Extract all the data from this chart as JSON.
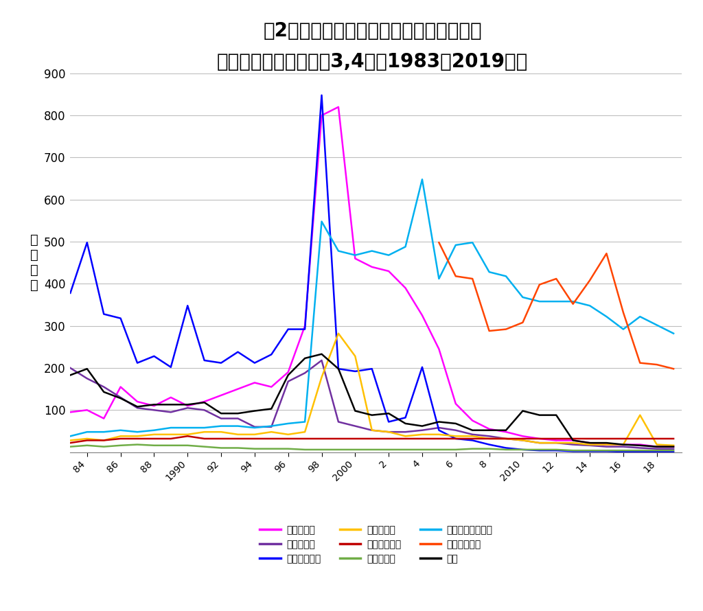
{
  "title_line1": "図2．国内における微生物による食中毒の",
  "title_line2": "発生件数の年次推移（3,4期：1983－2019年）",
  "ylabel": "発\n生\n件\n数",
  "years": [
    1983,
    1984,
    1985,
    1986,
    1987,
    1988,
    1989,
    1990,
    1991,
    1992,
    1993,
    1994,
    1995,
    1996,
    1997,
    1998,
    1999,
    2000,
    2001,
    2002,
    2003,
    2004,
    2005,
    2006,
    2007,
    2008,
    2009,
    2010,
    2011,
    2012,
    2013,
    2014,
    2015,
    2016,
    2017,
    2018,
    2019
  ],
  "series": [
    {
      "name": "サルモネラ",
      "color": "#FF00FF",
      "values": [
        95,
        100,
        80,
        155,
        120,
        110,
        130,
        110,
        120,
        135,
        150,
        165,
        155,
        190,
        300,
        800,
        820,
        460,
        440,
        430,
        390,
        325,
        245,
        115,
        75,
        55,
        48,
        38,
        32,
        28,
        28,
        22,
        18,
        18,
        18,
        13,
        13
      ]
    },
    {
      "name": "ブドウ球菌",
      "color": "#7030A0",
      "values": [
        200,
        175,
        155,
        130,
        105,
        100,
        95,
        105,
        100,
        80,
        80,
        60,
        60,
        168,
        188,
        218,
        72,
        62,
        52,
        48,
        48,
        52,
        58,
        52,
        42,
        38,
        32,
        28,
        22,
        22,
        18,
        16,
        13,
        13,
        10,
        8,
        8
      ]
    },
    {
      "name": "腸炎ビブリオ",
      "color": "#0000FF",
      "values": [
        378,
        498,
        328,
        318,
        212,
        228,
        202,
        348,
        218,
        212,
        238,
        212,
        232,
        292,
        292,
        848,
        198,
        192,
        198,
        72,
        82,
        202,
        52,
        32,
        28,
        18,
        10,
        6,
        4,
        4,
        2,
        2,
        2,
        1,
        1,
        1,
        1
      ]
    },
    {
      "name": "病原大腸菌",
      "color": "#FFC000",
      "values": [
        28,
        32,
        28,
        38,
        38,
        42,
        42,
        42,
        48,
        48,
        42,
        42,
        48,
        42,
        48,
        178,
        282,
        228,
        52,
        48,
        38,
        42,
        42,
        38,
        38,
        32,
        32,
        28,
        22,
        22,
        22,
        18,
        18,
        18,
        88,
        18,
        16
      ]
    },
    {
      "name": "ウエルシュ菌",
      "color": "#C00000",
      "values": [
        22,
        28,
        28,
        32,
        32,
        32,
        32,
        38,
        32,
        32,
        32,
        32,
        32,
        32,
        32,
        32,
        32,
        32,
        32,
        32,
        32,
        32,
        32,
        32,
        32,
        32,
        32,
        32,
        32,
        32,
        32,
        32,
        32,
        32,
        32,
        32,
        32
      ]
    },
    {
      "name": "セレウス菌",
      "color": "#70AD47",
      "values": [
        13,
        16,
        13,
        16,
        18,
        16,
        16,
        16,
        13,
        10,
        10,
        8,
        8,
        8,
        6,
        6,
        6,
        6,
        6,
        6,
        6,
        6,
        6,
        6,
        8,
        8,
        6,
        6,
        6,
        6,
        4,
        4,
        4,
        4,
        4,
        4,
        4
      ]
    },
    {
      "name": "カンピロバクター",
      "color": "#00B0F0",
      "values": [
        38,
        48,
        48,
        52,
        48,
        52,
        58,
        58,
        58,
        62,
        62,
        58,
        62,
        68,
        72,
        548,
        478,
        468,
        478,
        468,
        488,
        648,
        412,
        492,
        498,
        428,
        418,
        368,
        358,
        358,
        358,
        348,
        322,
        292,
        322,
        302,
        282
      ]
    },
    {
      "name": "ノロウイルス",
      "color": "#FF4500",
      "values": [
        null,
        null,
        null,
        null,
        null,
        null,
        null,
        null,
        null,
        null,
        null,
        null,
        null,
        null,
        null,
        null,
        null,
        null,
        null,
        null,
        null,
        null,
        498,
        418,
        412,
        288,
        292,
        308,
        398,
        412,
        352,
        408,
        472,
        332,
        212,
        208,
        198
      ]
    },
    {
      "name": "不明",
      "color": "#000000",
      "values": [
        183,
        198,
        143,
        128,
        108,
        113,
        113,
        113,
        118,
        92,
        92,
        98,
        103,
        183,
        223,
        233,
        198,
        98,
        88,
        92,
        68,
        62,
        72,
        68,
        52,
        52,
        52,
        98,
        88,
        88,
        28,
        22,
        22,
        18,
        16,
        13,
        13
      ]
    }
  ],
  "xtick_labels": [
    "84",
    "86",
    "88",
    "1990",
    "92",
    "94",
    "96",
    "98",
    "2000",
    "2",
    "4",
    "6",
    "8",
    "2010",
    "12",
    "14",
    "16",
    "18"
  ],
  "xtick_positions": [
    1984,
    1986,
    1988,
    1990,
    1992,
    1994,
    1996,
    1998,
    2000,
    2002,
    2004,
    2006,
    2008,
    2010,
    2012,
    2014,
    2016,
    2018
  ],
  "ylim": [
    0,
    900
  ],
  "yticks": [
    0,
    100,
    200,
    300,
    400,
    500,
    600,
    700,
    800,
    900
  ],
  "background_color": "#FFFFFF",
  "grid_color": "#BEBEBE"
}
